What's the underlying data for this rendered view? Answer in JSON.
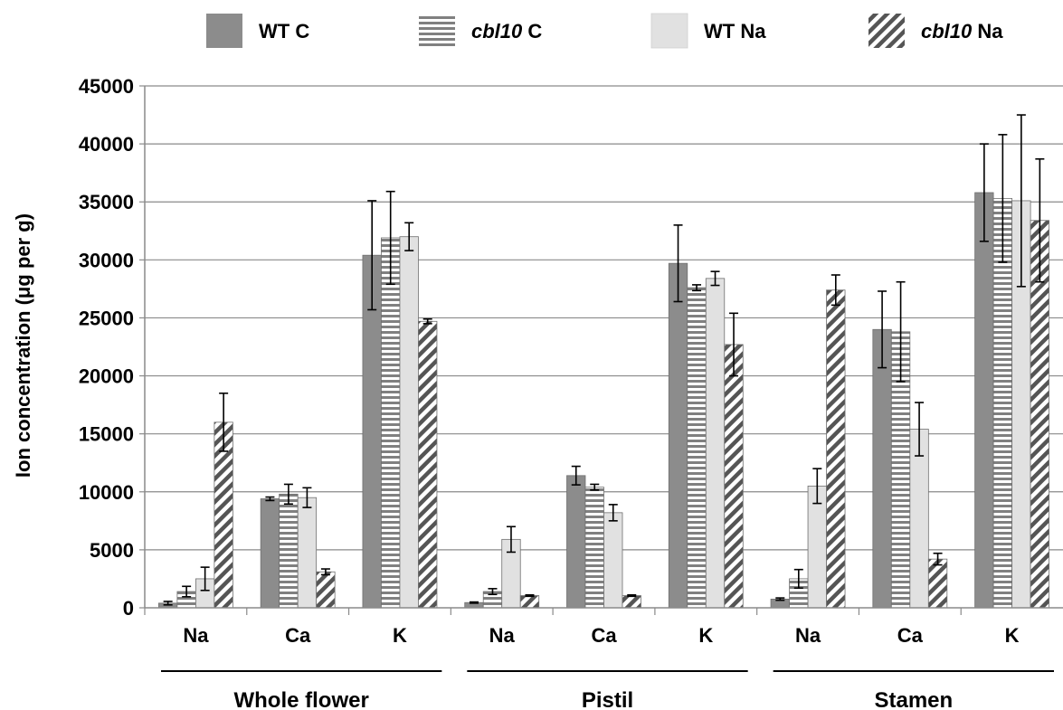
{
  "chart_data": {
    "type": "bar",
    "ylabel": "Ion concentration (μg per g)",
    "ylim": [
      0,
      45000
    ],
    "yticks": [
      0,
      5000,
      10000,
      15000,
      20000,
      25000,
      30000,
      35000,
      40000,
      45000
    ],
    "grid": true,
    "legend_position": "top",
    "groups": [
      {
        "label": "Whole flower",
        "categories": [
          "Na",
          "Ca",
          "K"
        ]
      },
      {
        "label": "Pistil",
        "categories": [
          "Na",
          "Ca",
          "K"
        ]
      },
      {
        "label": "Stamen",
        "categories": [
          "Na",
          "Ca",
          "K"
        ]
      }
    ],
    "categories": [
      "Na",
      "Ca",
      "K",
      "Na",
      "Ca",
      "K",
      "Na",
      "Ca",
      "K"
    ],
    "series": [
      {
        "name": "WT C",
        "name_parts": [
          {
            "t": "WT C",
            "i": false
          }
        ],
        "pattern": "solid-dark",
        "color": "#8c8c8c",
        "values": [
          400,
          9400,
          30400,
          450,
          11400,
          29700,
          750,
          24000,
          35800
        ],
        "errors": [
          150,
          150,
          4700,
          50,
          800,
          3300,
          100,
          3300,
          4200
        ]
      },
      {
        "name": "cbl10 C",
        "name_parts": [
          {
            "t": "cbl10",
            "i": true
          },
          {
            "t": " C",
            "i": false
          }
        ],
        "pattern": "horizontal-stripes",
        "color": "#808080",
        "values": [
          1400,
          9800,
          31900,
          1400,
          10400,
          27600,
          2500,
          23800,
          35300
        ],
        "errors": [
          450,
          850,
          4000,
          250,
          250,
          250,
          800,
          4300,
          5500
        ]
      },
      {
        "name": "WT Na",
        "name_parts": [
          {
            "t": "WT Na",
            "i": false
          }
        ],
        "pattern": "solid-light",
        "color": "#e1e1e1",
        "values": [
          2500,
          9500,
          32000,
          5900,
          8200,
          28400,
          10500,
          15400,
          35100
        ],
        "errors": [
          1000,
          850,
          1200,
          1100,
          700,
          600,
          1500,
          2300,
          7400
        ]
      },
      {
        "name": "cbl10 Na",
        "name_parts": [
          {
            "t": "cbl10",
            "i": true
          },
          {
            "t": " Na",
            "i": false
          }
        ],
        "pattern": "diagonal-stripes",
        "color": "#555555",
        "values": [
          16000,
          3100,
          24700,
          1050,
          1050,
          22700,
          27400,
          4200,
          33400
        ],
        "errors": [
          2500,
          250,
          200,
          60,
          60,
          2700,
          1300,
          500,
          5300
        ]
      }
    ]
  }
}
